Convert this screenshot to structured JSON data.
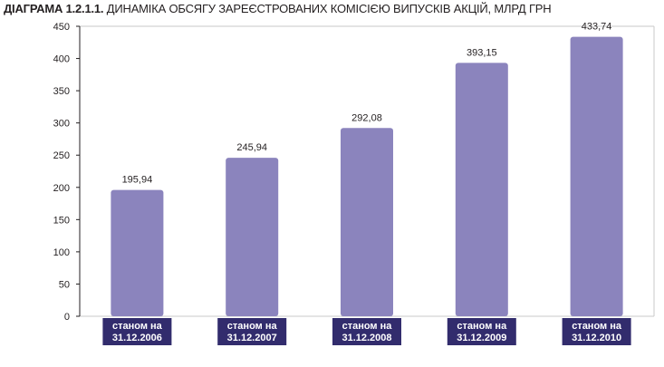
{
  "title_prefix": "ДІАГРАМА 1.2.1.1.",
  "title_text": "ДИНАМІКА ОБСЯГУ ЗАРЕЄСТРОВАНИХ КОМІСІЄЮ ВИПУСКІВ АКЦІЙ, МЛРД ГРН",
  "colors": {
    "bar": "#8b84bd",
    "label_box": "#322c6d",
    "grid": "#c8c8c8"
  },
  "chart_data": {
    "type": "bar",
    "title": "ДІАГРАМА 1.2.1.1. ДИНАМІКА ОБСЯГУ ЗАРЕЄСТРОВАНИХ КОМІСІЄЮ ВИПУСКІВ АКЦІЙ, МЛРД ГРН",
    "categories": [
      [
        "станом на",
        "31.12.2006"
      ],
      [
        "станом на",
        "31.12.2007"
      ],
      [
        "станом на",
        "31.12.2008"
      ],
      [
        "станом на",
        "31.12.2009"
      ],
      [
        "станом на",
        "31.12.2010"
      ]
    ],
    "values": [
      195.94,
      245.94,
      292.08,
      393.15,
      433.74
    ],
    "value_labels": [
      "195,94",
      "245,94",
      "292,08",
      "393,15",
      "433,74"
    ],
    "xlabel": "",
    "ylabel": "",
    "ylim": [
      0,
      450
    ],
    "yticks": [
      0,
      50,
      100,
      150,
      200,
      250,
      300,
      350,
      400,
      450
    ],
    "grid": false,
    "legend": "none"
  }
}
